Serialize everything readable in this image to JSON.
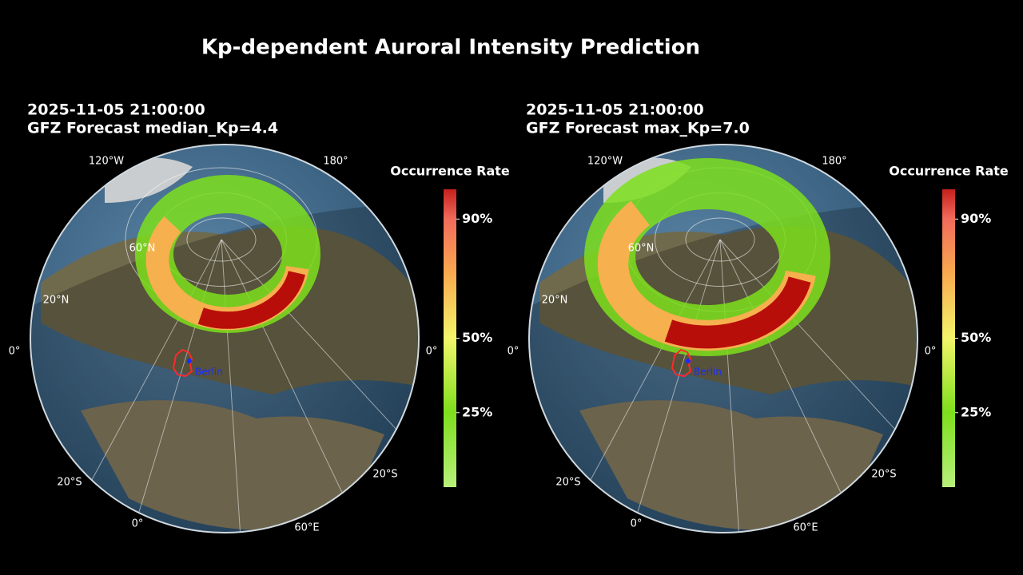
{
  "title": "Kp-dependent Auroral Intensity Prediction",
  "panels": [
    {
      "timestamp": "2025-11-05 21:00:00",
      "forecast": "GFZ Forecast median_Kp=4.4",
      "grid_labels": [
        "120°W",
        "180°",
        "60°N",
        "20°N",
        "0°",
        "0°",
        "20°S",
        "20°S",
        "0°",
        "60°E"
      ],
      "city": "Berlin",
      "colorbar": {
        "label": "Occurrence Rate",
        "lim": [
          0,
          100
        ],
        "ticks": [
          {
            "value": 25,
            "label": "25%"
          },
          {
            "value": 50,
            "label": "50%"
          },
          {
            "value": 90,
            "label": "90%"
          }
        ]
      }
    },
    {
      "timestamp": "2025-11-05 21:00:00",
      "forecast": "GFZ Forecast max_Kp=7.0",
      "grid_labels": [
        "120°W",
        "180°",
        "60°N",
        "20°N",
        "0°",
        "0°",
        "20°S",
        "20°S",
        "0°",
        "60°E"
      ],
      "city": "Berlin",
      "colorbar": {
        "label": "Occurrence Rate",
        "lim": [
          0,
          100
        ],
        "ticks": [
          {
            "value": 25,
            "label": "25%"
          },
          {
            "value": 50,
            "label": "50%"
          },
          {
            "value": 90,
            "label": "90%"
          }
        ]
      }
    }
  ]
}
